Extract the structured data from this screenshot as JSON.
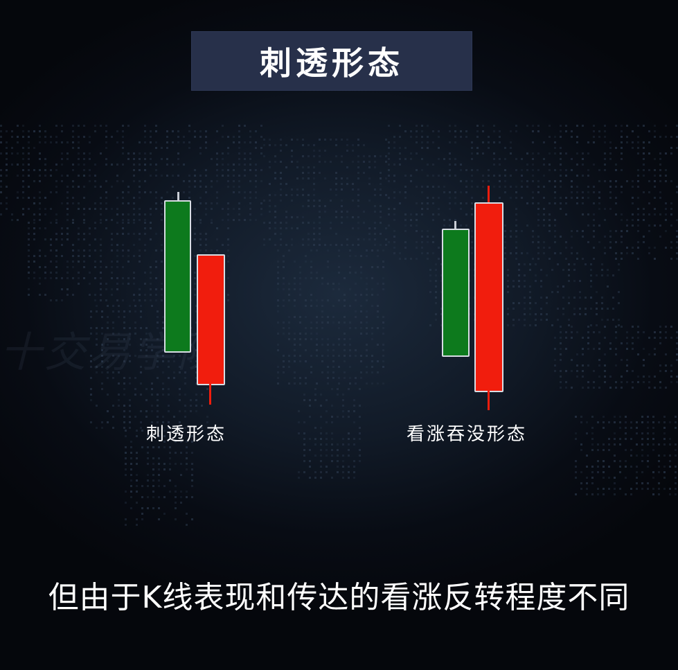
{
  "title": "刺透形态",
  "watermark": "十交易学院",
  "patterns": [
    {
      "label": "刺透形态",
      "candles": [
        {
          "color": "green",
          "direction": "up"
        },
        {
          "color": "red",
          "direction": "down"
        }
      ]
    },
    {
      "label": "看涨吞没形态",
      "candles": [
        {
          "color": "green",
          "direction": "up"
        },
        {
          "color": "red",
          "direction": "down"
        }
      ]
    }
  ],
  "subtitle": "但由于K线表现和传达的看涨反转程度不同",
  "colors": {
    "green": "#0d7a1d",
    "red": "#f11d0d",
    "title_bg": "#27304a"
  }
}
